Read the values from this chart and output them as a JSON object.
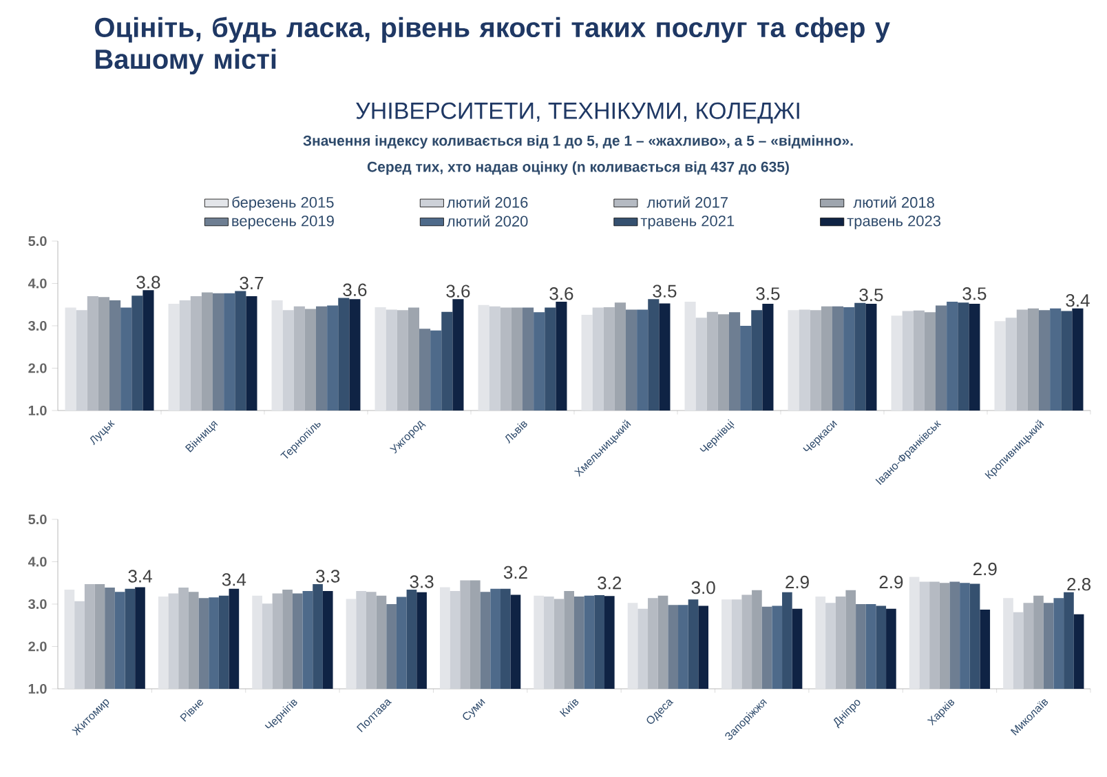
{
  "chart_data": [
    {
      "type": "bar",
      "title": "Оцініть, будь ласка, рівень якості таких послуг та сфер у Вашому місті",
      "subtitle": "УНІВЕРСИТЕТИ, ТЕХНІКУМИ, КОЛЕДЖІ",
      "annotations": [
        "Значення індексу коливається від 1 до 5, де 1 – «жахливо», а 5 – «відмінно».",
        "Серед тих, хто надав оцінку (n коливається від 437 до 635)"
      ],
      "legend": "top",
      "categories": [
        "Луцьк",
        "Вінниця",
        "Тернопіль",
        "Ужгород",
        "Львів",
        "Хмельницький",
        "Чернівці",
        "Черкаси",
        "Івано-Франківськ",
        "Кропивницький"
      ],
      "ylim": [
        1,
        5
      ],
      "yticks": [
        {
          "value": 1,
          "label": "1.0"
        },
        {
          "value": 2,
          "label": "2.0"
        },
        {
          "value": 3,
          "label": "3.0"
        },
        {
          "value": 4,
          "label": "4.0"
        },
        {
          "value": 5,
          "label": "5.0"
        }
      ],
      "series": [
        {
          "name": "березень 2015",
          "color": "#e3e5e9",
          "values": [
            3.43,
            3.52,
            3.6,
            3.44,
            3.49,
            3.26,
            3.57,
            3.37,
            3.24,
            3.11
          ]
        },
        {
          "name": "лютий 2016",
          "color": "#cdd1d8",
          "values": [
            3.37,
            3.6,
            3.37,
            3.38,
            3.46,
            3.43,
            3.19,
            3.38,
            3.35,
            3.19
          ]
        },
        {
          "name": "лютий 2017",
          "color": "#b5bac2",
          "values": [
            3.7,
            3.7,
            3.46,
            3.37,
            3.43,
            3.44,
            3.33,
            3.37,
            3.36,
            3.38
          ]
        },
        {
          "name": "лютий 2018",
          "color": "#9ea5ae",
          "values": [
            3.68,
            3.79,
            3.4,
            3.43,
            3.43,
            3.55,
            3.27,
            3.46,
            3.32,
            3.41
          ]
        },
        {
          "name": "вересень 2019",
          "color": "#6e7e92",
          "values": [
            3.6,
            3.77,
            3.46,
            2.93,
            3.43,
            3.38,
            3.32,
            3.46,
            3.48,
            3.37
          ]
        },
        {
          "name": "лютий 2020",
          "color": "#4e6a8a",
          "values": [
            3.43,
            3.77,
            3.48,
            2.89,
            3.32,
            3.38,
            3.0,
            3.44,
            3.57,
            3.41
          ]
        },
        {
          "name": "травень 2021",
          "color": "#35506f",
          "values": [
            3.71,
            3.82,
            3.66,
            3.33,
            3.43,
            3.63,
            3.37,
            3.54,
            3.55,
            3.35
          ]
        },
        {
          "name": "травень 2023",
          "color": "#0f2344",
          "values": [
            3.84,
            3.7,
            3.63,
            3.63,
            3.57,
            3.53,
            3.52,
            3.52,
            3.52,
            3.41
          ],
          "value_labels": [
            "3.8",
            "3.7",
            "3.6",
            "3.6",
            "3.6",
            "3.5",
            "3.5",
            "3.5",
            "3.5",
            "3.4"
          ]
        }
      ]
    },
    {
      "type": "bar",
      "categories": [
        "Житомир",
        "Рівне",
        "Чернігів",
        "Полтава",
        "Суми",
        "Київ",
        "Одеса",
        "Запоріжжя",
        "Дніпро",
        "Харків",
        "Миколаїв"
      ],
      "ylim": [
        1,
        5
      ],
      "yticks": [
        {
          "value": 1,
          "label": "1.0"
        },
        {
          "value": 2,
          "label": "2.0"
        },
        {
          "value": 3,
          "label": "3.0"
        },
        {
          "value": 4,
          "label": "4.0"
        },
        {
          "value": 5,
          "label": "5.0"
        }
      ],
      "series": [
        {
          "color": "#e3e5e9",
          "values": [
            3.34,
            3.18,
            3.2,
            3.12,
            3.4,
            3.2,
            3.03,
            3.11,
            3.18,
            3.64,
            3.14
          ]
        },
        {
          "color": "#cdd1d8",
          "values": [
            3.07,
            3.25,
            3.01,
            3.31,
            3.31,
            3.18,
            2.89,
            3.11,
            3.03,
            3.53,
            2.81
          ]
        },
        {
          "color": "#b5bac2",
          "values": [
            3.47,
            3.39,
            3.25,
            3.29,
            3.56,
            3.12,
            3.14,
            3.22,
            3.18,
            3.53,
            3.03
          ]
        },
        {
          "color": "#9ea5ae",
          "values": [
            3.47,
            3.29,
            3.34,
            3.2,
            3.56,
            3.31,
            3.2,
            3.33,
            3.33,
            3.5,
            3.2
          ]
        },
        {
          "color": "#6e7e92",
          "values": [
            3.39,
            3.14,
            3.25,
            3.0,
            3.29,
            3.18,
            2.98,
            2.94,
            3.0,
            3.53,
            3.03
          ]
        },
        {
          "color": "#4e6a8a",
          "values": [
            3.29,
            3.16,
            3.31,
            3.17,
            3.36,
            3.2,
            2.98,
            2.96,
            3.0,
            3.5,
            3.14
          ]
        },
        {
          "color": "#35506f",
          "values": [
            3.36,
            3.2,
            3.47,
            3.34,
            3.36,
            3.21,
            3.11,
            3.28,
            2.96,
            3.48,
            3.28
          ]
        },
        {
          "color": "#0f2344",
          "values": [
            3.4,
            3.36,
            3.31,
            3.28,
            3.22,
            3.19,
            2.96,
            2.89,
            2.89,
            2.87,
            2.76
          ],
          "value_labels": [
            "3.4",
            "3.4",
            "3.3",
            "3.3",
            "3.2",
            "3.2",
            "3.0",
            "2.9",
            "2.9",
            "2.9",
            "2.8"
          ]
        }
      ]
    }
  ]
}
